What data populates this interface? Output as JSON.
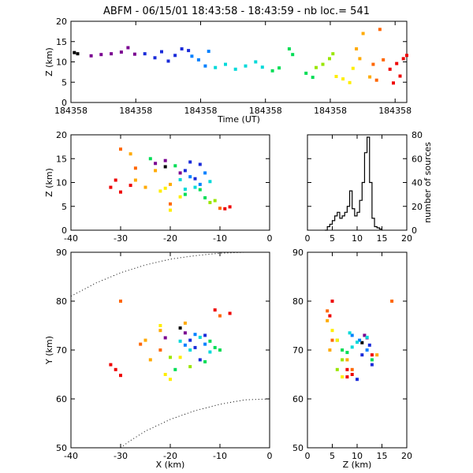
{
  "title": "ABFM - 06/15/01 18:43:58 - 18:43:59 - nb loc.=     541",
  "chart_data": [
    {
      "id": "z-vs-time",
      "type": "scatter",
      "xlabel": "Time (UT)",
      "ylabel": "Z (km)",
      "x_tick_labels": [
        "184358",
        "184358",
        "184358",
        "184358",
        "184358",
        "184358"
      ],
      "ylim": [
        0,
        20
      ],
      "y_ticks": [
        0,
        5,
        10,
        15,
        20
      ],
      "color_encoding": "time (rainbow: purple early to red late)",
      "series": [
        {
          "color": "#000000",
          "points": [
            [
              0.01,
              12.3
            ],
            [
              0.02,
              12.0
            ]
          ]
        },
        {
          "color": "#7a0090",
          "points": [
            [
              0.06,
              11.5
            ],
            [
              0.09,
              11.8
            ],
            [
              0.12,
              12.0
            ],
            [
              0.15,
              12.4
            ],
            [
              0.17,
              13.5
            ],
            [
              0.19,
              11.9
            ]
          ]
        },
        {
          "color": "#1a2bd9",
          "points": [
            [
              0.22,
              12.0
            ],
            [
              0.25,
              11.0
            ],
            [
              0.27,
              12.5
            ],
            [
              0.29,
              10.2
            ],
            [
              0.31,
              11.6
            ],
            [
              0.33,
              13.2
            ],
            [
              0.35,
              12.8
            ]
          ]
        },
        {
          "color": "#0080ff",
          "points": [
            [
              0.36,
              11.4
            ],
            [
              0.38,
              10.5
            ],
            [
              0.4,
              9.0
            ],
            [
              0.41,
              12.6
            ]
          ]
        },
        {
          "color": "#00d9d9",
          "points": [
            [
              0.43,
              8.6
            ],
            [
              0.46,
              9.4
            ],
            [
              0.49,
              8.2
            ],
            [
              0.52,
              9.0
            ],
            [
              0.55,
              10.0
            ],
            [
              0.57,
              8.7
            ]
          ]
        },
        {
          "color": "#00dd55",
          "points": [
            [
              0.6,
              7.8
            ],
            [
              0.62,
              8.5
            ],
            [
              0.65,
              13.2
            ],
            [
              0.66,
              11.8
            ],
            [
              0.7,
              7.2
            ],
            [
              0.72,
              6.2
            ]
          ]
        },
        {
          "color": "#99e600",
          "points": [
            [
              0.73,
              8.6
            ],
            [
              0.75,
              9.4
            ],
            [
              0.77,
              10.8
            ],
            [
              0.78,
              12.0
            ]
          ]
        },
        {
          "color": "#ffee00",
          "points": [
            [
              0.79,
              6.4
            ],
            [
              0.81,
              5.8
            ],
            [
              0.83,
              4.9
            ],
            [
              0.84,
              8.4
            ]
          ]
        },
        {
          "color": "#ffaa00",
          "points": [
            [
              0.85,
              13.2
            ],
            [
              0.86,
              10.8
            ],
            [
              0.87,
              17.0
            ],
            [
              0.89,
              6.3
            ]
          ]
        },
        {
          "color": "#ff6600",
          "points": [
            [
              0.9,
              9.4
            ],
            [
              0.91,
              5.5
            ],
            [
              0.92,
              18.0
            ],
            [
              0.93,
              10.5
            ]
          ]
        },
        {
          "color": "#ee0000",
          "points": [
            [
              0.95,
              8.2
            ],
            [
              0.96,
              4.8
            ],
            [
              0.97,
              9.6
            ],
            [
              0.98,
              6.5
            ],
            [
              0.99,
              10.8
            ],
            [
              1.0,
              11.6
            ]
          ]
        }
      ]
    },
    {
      "id": "z-vs-x",
      "type": "scatter",
      "xlabel": "",
      "ylabel": "Z (km)",
      "xlim": [
        -40,
        0
      ],
      "x_ticks": [
        -40,
        -30,
        -20,
        -10,
        0
      ],
      "ylim": [
        0,
        20
      ],
      "y_ticks": [
        0,
        5,
        10,
        15,
        20
      ],
      "series": [
        {
          "color": "#000000",
          "points": [
            [
              -21,
              13.3
            ]
          ]
        },
        {
          "color": "#7a0090",
          "points": [
            [
              -23,
              14.0
            ],
            [
              -21,
              14.6
            ],
            [
              -18,
              12.0
            ]
          ]
        },
        {
          "color": "#1a2bd9",
          "points": [
            [
              -16,
              14.3
            ],
            [
              -17,
              12.5
            ],
            [
              -15,
              10.8
            ],
            [
              -14,
              13.8
            ]
          ]
        },
        {
          "color": "#0080ff",
          "points": [
            [
              -13,
              12.0
            ],
            [
              -14,
              9.6
            ],
            [
              -16,
              11.2
            ]
          ]
        },
        {
          "color": "#00d9d9",
          "points": [
            [
              -18,
              10.6
            ],
            [
              -15,
              9.0
            ],
            [
              -12,
              10.2
            ],
            [
              -17,
              8.6
            ]
          ]
        },
        {
          "color": "#00dd55",
          "points": [
            [
              -19,
              13.5
            ],
            [
              -17,
              7.5
            ],
            [
              -13,
              6.8
            ],
            [
              -14,
              8.5
            ],
            [
              -24,
              15.0
            ]
          ]
        },
        {
          "color": "#99e600",
          "points": [
            [
              -12,
              5.8
            ],
            [
              -11,
              6.2
            ]
          ]
        },
        {
          "color": "#ffee00",
          "points": [
            [
              -21,
              8.8
            ],
            [
              -20,
              4.2
            ],
            [
              -22,
              8.2
            ],
            [
              -18,
              7.0
            ]
          ]
        },
        {
          "color": "#ffaa00",
          "points": [
            [
              -25,
              9.0
            ],
            [
              -27,
              10.5
            ],
            [
              -23,
              12.5
            ],
            [
              -20,
              9.6
            ],
            [
              -28,
              16.0
            ]
          ]
        },
        {
          "color": "#ff6600",
          "points": [
            [
              -30,
              17.0
            ],
            [
              -27,
              13.0
            ],
            [
              -20,
              5.5
            ],
            [
              -10,
              4.6
            ]
          ]
        },
        {
          "color": "#ee0000",
          "points": [
            [
              -32,
              9.0
            ],
            [
              -30,
              8.0
            ],
            [
              -28,
              9.4
            ],
            [
              -31,
              10.5
            ],
            [
              -9,
              4.5
            ],
            [
              -8,
              4.9
            ]
          ]
        }
      ]
    },
    {
      "id": "source-histogram",
      "type": "line",
      "xlabel": "",
      "ylabel": "number of sources",
      "xlim": [
        0,
        20
      ],
      "x_ticks": [
        0,
        5,
        10,
        15,
        20
      ],
      "ylim": [
        0,
        80
      ],
      "y_ticks": [
        0,
        20,
        40,
        60,
        80
      ],
      "bins": [
        [
          3.5,
          0
        ],
        [
          4,
          3
        ],
        [
          4.5,
          5
        ],
        [
          5,
          8
        ],
        [
          5.5,
          12
        ],
        [
          6,
          15
        ],
        [
          6.5,
          10
        ],
        [
          7,
          12
        ],
        [
          7.5,
          15
        ],
        [
          8,
          20
        ],
        [
          8.5,
          33
        ],
        [
          9,
          18
        ],
        [
          9.5,
          12
        ],
        [
          10,
          15
        ],
        [
          10.5,
          25
        ],
        [
          11,
          40
        ],
        [
          11.5,
          65
        ],
        [
          12,
          78
        ],
        [
          12.5,
          40
        ],
        [
          13,
          10
        ],
        [
          13.5,
          3
        ],
        [
          14,
          2
        ],
        [
          14.5,
          1
        ],
        [
          15,
          0
        ]
      ]
    },
    {
      "id": "y-vs-x",
      "type": "scatter",
      "xlabel": "X (km)",
      "ylabel": "Y (km)",
      "xlim": [
        -40,
        0
      ],
      "x_ticks": [
        -40,
        -30,
        -20,
        -10,
        0
      ],
      "ylim": [
        50,
        90
      ],
      "y_ticks": [
        50,
        60,
        70,
        80,
        90
      ],
      "series": [
        {
          "color": "#000000",
          "points": [
            [
              -18,
              74.5
            ]
          ]
        },
        {
          "color": "#7a0090",
          "points": [
            [
              -17,
              73.5
            ],
            [
              -21,
              72.5
            ]
          ]
        },
        {
          "color": "#1a2bd9",
          "points": [
            [
              -16,
              72.0
            ],
            [
              -15,
              70.5
            ],
            [
              -13,
              73.0
            ],
            [
              -14,
              68.0
            ]
          ]
        },
        {
          "color": "#0080ff",
          "points": [
            [
              -15,
              73.2
            ],
            [
              -13,
              71.2
            ],
            [
              -17,
              71.0
            ]
          ]
        },
        {
          "color": "#00d9d9",
          "points": [
            [
              -16,
              70.0
            ],
            [
              -14,
              72.6
            ],
            [
              -12,
              69.6
            ],
            [
              -18,
              71.8
            ]
          ]
        },
        {
          "color": "#00dd55",
          "points": [
            [
              -11,
              70.5
            ],
            [
              -13,
              67.6
            ],
            [
              -12,
              71.8
            ],
            [
              -19,
              66.0
            ],
            [
              -10,
              70.0
            ]
          ]
        },
        {
          "color": "#99e600",
          "points": [
            [
              -20,
              68.5
            ],
            [
              -16,
              66.6
            ]
          ]
        },
        {
          "color": "#ffee00",
          "points": [
            [
              -21,
              65.0
            ],
            [
              -20,
              64.0
            ],
            [
              -22,
              75.0
            ],
            [
              -18,
              68.5
            ]
          ]
        },
        {
          "color": "#ffaa00",
          "points": [
            [
              -25,
              72.0
            ],
            [
              -24,
              68.0
            ],
            [
              -22,
              74.0
            ],
            [
              -17,
              75.5
            ]
          ]
        },
        {
          "color": "#ff6600",
          "points": [
            [
              -30,
              80.0
            ],
            [
              -26,
              71.2
            ],
            [
              -22,
              70.0
            ],
            [
              -10,
              77.0
            ]
          ]
        },
        {
          "color": "#ee0000",
          "points": [
            [
              -31,
              66.0
            ],
            [
              -30,
              64.8
            ],
            [
              -32,
              67.0
            ],
            [
              -11,
              78.2
            ],
            [
              -8,
              77.5
            ]
          ]
        }
      ],
      "dotted_curves": [
        [
          [
            -40,
            81
          ],
          [
            -35,
            83.7
          ],
          [
            -30,
            85.8
          ],
          [
            -25,
            87.4
          ],
          [
            -20,
            88.6
          ],
          [
            -15,
            89.3
          ],
          [
            -10,
            89.8
          ],
          [
            -5,
            90
          ]
        ],
        [
          [
            -30,
            50
          ],
          [
            -28,
            51.5
          ],
          [
            -25,
            53.4
          ],
          [
            -20,
            55.8
          ],
          [
            -15,
            57.6
          ],
          [
            -10,
            58.9
          ],
          [
            -5,
            59.8
          ],
          [
            0,
            60
          ]
        ]
      ]
    },
    {
      "id": "y-vs-z",
      "type": "scatter",
      "xlabel": "Z (km)",
      "ylabel": "",
      "xlim": [
        0,
        20
      ],
      "x_ticks": [
        0,
        5,
        10,
        15,
        20
      ],
      "ylim": [
        50,
        90
      ],
      "y_ticks": [
        50,
        60,
        70,
        80,
        90
      ],
      "series": [
        {
          "color": "#000000",
          "points": [
            [
              11,
              71.5
            ]
          ]
        },
        {
          "color": "#7a0090",
          "points": [
            [
              12,
              72.5
            ],
            [
              11.5,
              73.0
            ]
          ]
        },
        {
          "color": "#1a2bd9",
          "points": [
            [
              12.5,
              71.0
            ],
            [
              11,
              69.0
            ],
            [
              13,
              67.0
            ],
            [
              10,
              64.0
            ]
          ]
        },
        {
          "color": "#0080ff",
          "points": [
            [
              10.5,
              72.0
            ],
            [
              12,
              70.0
            ],
            [
              9,
              73.0
            ]
          ]
        },
        {
          "color": "#00d9d9",
          "points": [
            [
              9,
              70.6
            ],
            [
              10,
              71.6
            ],
            [
              8.5,
              73.5
            ],
            [
              12,
              72.6
            ]
          ]
        },
        {
          "color": "#00dd55",
          "points": [
            [
              7,
              70.0
            ],
            [
              8,
              69.5
            ],
            [
              6,
              72.0
            ],
            [
              13,
              68.0
            ]
          ]
        },
        {
          "color": "#99e600",
          "points": [
            [
              6,
              66.0
            ],
            [
              7,
              68.0
            ]
          ]
        },
        {
          "color": "#ffee00",
          "points": [
            [
              5,
              74.0
            ],
            [
              6,
              72.0
            ],
            [
              7,
              64.5
            ]
          ]
        },
        {
          "color": "#ffaa00",
          "points": [
            [
              4,
              76.0
            ],
            [
              4.5,
              70.0
            ],
            [
              8,
              68.0
            ],
            [
              14,
              69.0
            ]
          ]
        },
        {
          "color": "#ff6600",
          "points": [
            [
              4,
              78.0
            ],
            [
              5,
              72.0
            ],
            [
              9,
              66.0
            ],
            [
              17,
              80.0
            ]
          ]
        },
        {
          "color": "#ee0000",
          "points": [
            [
              8,
              66.0
            ],
            [
              8,
              64.5
            ],
            [
              9,
              65.0
            ],
            [
              4.5,
              77.0
            ],
            [
              5,
              80.0
            ],
            [
              13,
              69.0
            ]
          ]
        }
      ]
    }
  ]
}
